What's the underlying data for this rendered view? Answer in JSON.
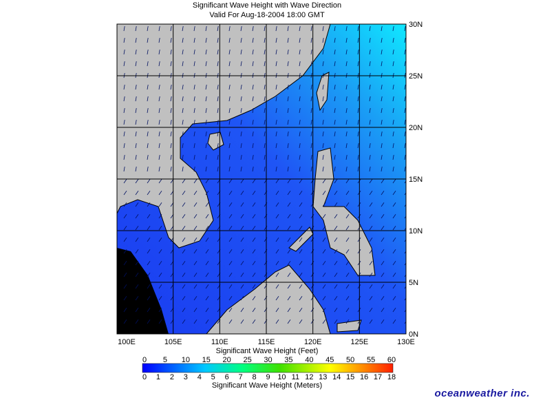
{
  "header": {
    "title": "Significant Wave Height with Wave Direction",
    "valid": "Valid For Aug-18-2004 18:00 GMT"
  },
  "map": {
    "longitude_labels": [
      "100E",
      "105E",
      "110E",
      "115E",
      "120E",
      "125E",
      "130E"
    ],
    "latitude_labels": [
      "0N",
      "5N",
      "10N",
      "15N",
      "20N",
      "25N",
      "30N"
    ]
  },
  "colorbar": {
    "feet_title": "Significant Wave Height (Feet)",
    "feet_labels": [
      "0",
      "5",
      "10",
      "15",
      "20",
      "25",
      "30",
      "35",
      "40",
      "45",
      "50",
      "55",
      "60"
    ],
    "meters_title": "Significant Wave Height (Meters)",
    "meters_labels": [
      "0",
      "1",
      "2",
      "3",
      "4",
      "5",
      "6",
      "7",
      "8",
      "9",
      "10",
      "11",
      "12",
      "13",
      "14",
      "15",
      "16",
      "17",
      "18"
    ]
  },
  "brand": "oceanweather inc."
}
